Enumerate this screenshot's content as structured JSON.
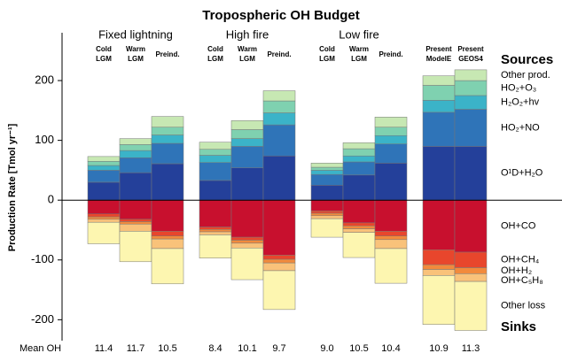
{
  "chart_data": {
    "type": "stacked-bar",
    "title": "Tropospheric OH Budget",
    "ylabel": "Production Rate [Tmol yr⁻¹]",
    "ylim": [
      -235,
      280
    ],
    "yticks": [
      -200,
      -100,
      0,
      100,
      200
    ],
    "grid": false,
    "sources_label": "Sources",
    "sinks_label": "Sinks",
    "categories": [
      {
        "group": "Fixed lightning",
        "label": [
          "Cold",
          "LGM"
        ]
      },
      {
        "group": "Fixed lightning",
        "label": [
          "Warm",
          "LGM"
        ]
      },
      {
        "group": "Fixed lightning",
        "label": [
          "Preind."
        ]
      },
      {
        "group": "High fire",
        "label": [
          "Cold",
          "LGM"
        ]
      },
      {
        "group": "High fire",
        "label": [
          "Warm",
          "LGM"
        ]
      },
      {
        "group": "High fire",
        "label": [
          "Preind."
        ]
      },
      {
        "group": "Low fire",
        "label": [
          "Cold",
          "LGM"
        ]
      },
      {
        "group": "Low fire",
        "label": [
          "Warm",
          "LGM"
        ]
      },
      {
        "group": "Low fire",
        "label": [
          "Preind."
        ]
      },
      {
        "label": [
          "Present",
          "ModelE"
        ]
      },
      {
        "label": [
          "Present",
          "GEOS4"
        ]
      }
    ],
    "series": [
      {
        "name": "O¹D+H₂O",
        "color": "#24409a",
        "values": [
          30,
          46,
          61,
          33,
          54,
          74,
          25,
          42,
          62,
          90,
          90
        ]
      },
      {
        "name": "HO₂+NO",
        "color": "#2f74b8",
        "values": [
          20,
          25,
          34,
          30,
          36,
          52,
          18,
          22,
          32,
          57,
          62
        ]
      },
      {
        "name": "H₂O₂+hv",
        "color": "#3bb3c8",
        "values": [
          8,
          12,
          14,
          12,
          13,
          20,
          7,
          10,
          14,
          20,
          23
        ]
      },
      {
        "name": "HO₂+O₃",
        "color": "#7fd1b0",
        "values": [
          7,
          10,
          13,
          10,
          15,
          20,
          5,
          12,
          14,
          25,
          25
        ]
      },
      {
        "name": "Other prod.",
        "color": "#c7e8b3",
        "values": [
          8,
          10,
          18,
          12,
          15,
          17,
          7,
          10,
          17,
          16,
          18
        ]
      },
      {
        "name": "OH+CO",
        "color": "#c8102e",
        "values": [
          -23,
          -32,
          -52,
          -45,
          -62,
          -92,
          -18,
          -38,
          -52,
          -83,
          -87
        ]
      },
      {
        "name": "OH+CH₄",
        "color": "#e8462c",
        "values": [
          -5,
          -4,
          -8,
          -4,
          -5,
          -7,
          -4,
          -5,
          -8,
          -25,
          -26
        ]
      },
      {
        "name": "OH+H₂",
        "color": "#f28a3c",
        "values": [
          -4,
          -4,
          -5,
          -4,
          -5,
          -6,
          -4,
          -5,
          -6,
          -8,
          -10
        ]
      },
      {
        "name": "OH+C₅H₈",
        "color": "#f9c27a",
        "values": [
          -5,
          -12,
          -16,
          -5,
          -8,
          -13,
          -5,
          -6,
          -15,
          -10,
          -13
        ]
      },
      {
        "name": "Other loss",
        "color": "#fdf6b0",
        "values": [
          -36,
          -51,
          -59,
          -39,
          -53,
          -65,
          -31,
          -42,
          -58,
          -82,
          -82
        ]
      }
    ],
    "mean_oh": {
      "label": "Mean OH",
      "values": [
        "11.4",
        "11.7",
        "10.5",
        "8.4",
        "10.1",
        "9.7",
        "9.0",
        "10.5",
        "10.4",
        "10.9",
        "11.3"
      ]
    }
  }
}
